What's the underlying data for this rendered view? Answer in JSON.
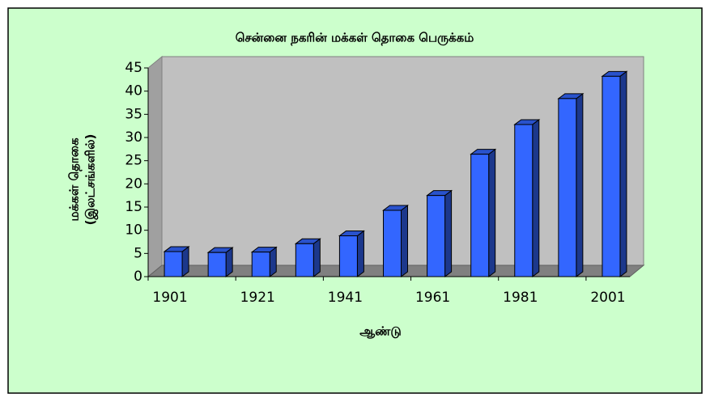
{
  "chart_data": {
    "type": "bar",
    "title": "சென்னை நகரின் மக்கள் தொகை பெருக்கம்",
    "y_label": [
      "மக்கள் தொகை",
      "(இலட்சங்களில்)"
    ],
    "x_label": "ஆண்டு",
    "categories": [
      "1901",
      null,
      "1921",
      null,
      "1941",
      null,
      "1961",
      null,
      "1981",
      null,
      "2001"
    ],
    "values": [
      5.4,
      5.2,
      5.3,
      7.1,
      8.8,
      14.3,
      17.5,
      26.4,
      32.8,
      38.4,
      43.2
    ],
    "color": "#3366ff",
    "ylim": [
      0,
      45
    ],
    "yticks": [
      0,
      5,
      10,
      15,
      20,
      25,
      30,
      35,
      40,
      45
    ]
  }
}
